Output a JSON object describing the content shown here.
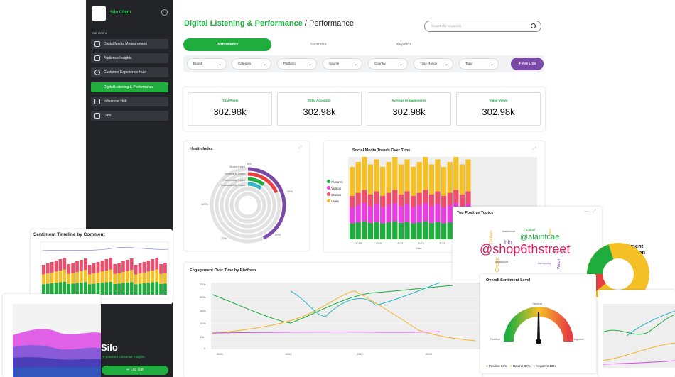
{
  "sidebar": {
    "client_name": "Silo Client",
    "menu_label": "Main Menu",
    "items": [
      {
        "label": "Digital Media Measurement",
        "active": false
      },
      {
        "label": "Audience Insights",
        "active": false
      },
      {
        "label": "Customer Experience Hub",
        "active": false
      },
      {
        "label": "Digital Listening & Performance",
        "active": true
      },
      {
        "label": "Influencer Hub",
        "active": false
      },
      {
        "label": "Data",
        "active": false
      }
    ],
    "brand_name": "Silo",
    "brand_tagline": "AI-powered consumer insights.",
    "logout_label": "Log Out"
  },
  "header": {
    "title_main": "Digital Listening & Performance",
    "title_sep": " / ",
    "title_sub": "Performance",
    "search_placeholder": "Search the keywords"
  },
  "tabs": [
    "Performance",
    "Sentiment",
    "Keyword"
  ],
  "filters": [
    "Brand",
    "Category",
    "Platform",
    "Source",
    "Country",
    "Time Range",
    "Topic"
  ],
  "ask_label": "Ask Lora",
  "kpis": [
    {
      "label": "Total Posts",
      "value": "302.98k"
    },
    {
      "label": "Total Accounts",
      "value": "302.98k"
    },
    {
      "label": "Average Engagements",
      "value": "302.98k"
    },
    {
      "label": "Video Views",
      "value": "302.98k"
    }
  ],
  "health_index": {
    "title": "Health Index",
    "labels": [
      "Brand Index",
      "Sentiment Index",
      "Community Index",
      "Sustainability Index"
    ],
    "ticks": [
      "0%",
      "25%",
      "50%",
      "75%",
      "100%"
    ],
    "colors": [
      "#7b4aa8",
      "#e84040",
      "#1fae3e",
      "#2bb5c4"
    ]
  },
  "social_trends": {
    "title": "Social Media Trends Over Time",
    "legend": [
      {
        "name": "Pictures",
        "color": "#1fae3e"
      },
      {
        "name": "Videos",
        "color": "#e83de0"
      },
      {
        "name": "Stories",
        "color": "#ee4d6d"
      },
      {
        "name": "Lives",
        "color": "#f5c026"
      }
    ],
    "x_ticks": [
      "2019",
      "2020",
      "2021",
      "2022",
      "2023"
    ],
    "x_label": "Date"
  },
  "sentiment_timeline": {
    "title": "Sentiment Timeline by Comment"
  },
  "positive_topics": {
    "title": "Top Positive Topics",
    "words": [
      "@shop6thstreet",
      "@alainfcae",
      "bio",
      "#alainclub",
      "#alainclub",
      "Deliver",
      "Football",
      "Check",
      "#shopping",
      "Watch",
      "love",
      "#alainclub"
    ]
  },
  "sentiment_distribution": {
    "title_line1": "Sentiment",
    "title_line2": "Distribution"
  },
  "engagement": {
    "title": "Engagement Over Time by Platform",
    "y_ticks": [
      "250k",
      "200k",
      "150k",
      "100k",
      "50k",
      "0"
    ],
    "x_ticks": [
      "2020",
      "2021",
      "2022",
      "2023"
    ]
  },
  "overall_sentiment": {
    "title": "Overall Sentiment Level",
    "gauge_labels": [
      "Positive",
      "Neutral",
      "Negative"
    ],
    "legend": [
      {
        "name": "Positive",
        "value": "60%",
        "color": "#1fae3e"
      },
      {
        "name": "Neutral",
        "value": "30%",
        "color": "#f5c026"
      },
      {
        "name": "Negative",
        "value": "10%",
        "color": "#e84040"
      }
    ]
  }
}
